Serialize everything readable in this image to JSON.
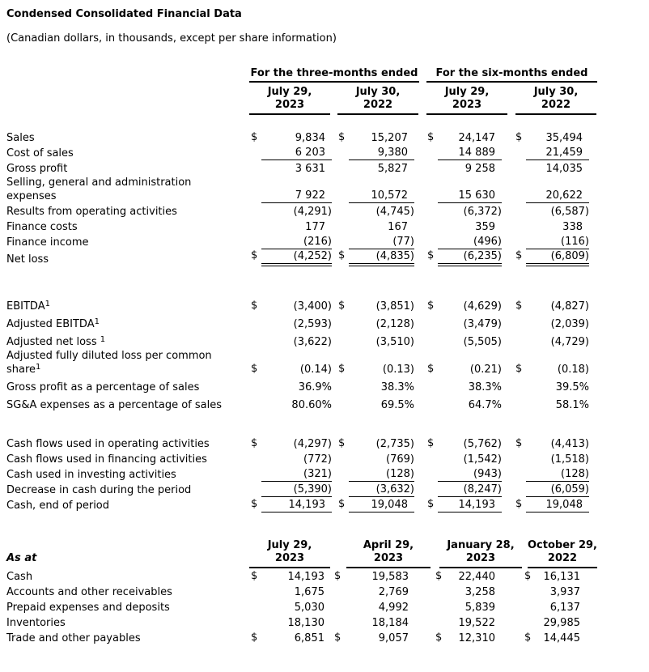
{
  "title": "Condensed Consolidated Financial Data",
  "subtitle": "(Canadian dollars, in thousands, except per share information)",
  "periods_table": {
    "group_headers": [
      "For the three-months ended",
      "For the six-months ended"
    ],
    "column_headers": [
      "July 29,\n2023",
      "July 30,\n2022",
      "July 29,\n2023",
      "July 30,\n2022"
    ],
    "sections": [
      {
        "name": "operations",
        "rows": [
          {
            "label": "Sales",
            "dollar": true,
            "values": [
              "9,834",
              "15,207",
              "24,147",
              "35,494"
            ]
          },
          {
            "label": "Cost of sales",
            "values": [
              "6 203",
              "9,380",
              "14 889",
              "21,459"
            ],
            "underline": "single"
          },
          {
            "label": "Gross profit",
            "values": [
              "3 631",
              "5,827",
              "9 258",
              "14,035"
            ]
          },
          {
            "label": "Selling, general and administration\nexpenses",
            "values": [
              "7 922",
              "10,572",
              "15 630",
              "20,622"
            ],
            "underline": "single"
          },
          {
            "label": "Results from operating activities",
            "values": [
              "(4,291)",
              "(4,745)",
              "(6,372)",
              "(6,587)"
            ]
          },
          {
            "label": "Finance costs",
            "values": [
              "177",
              "167",
              "359",
              "338"
            ]
          },
          {
            "label": "Finance income",
            "values": [
              "(216)",
              "(77)",
              "(496)",
              "(116)"
            ],
            "underline": "single"
          },
          {
            "label": "Net loss",
            "dollar": true,
            "values": [
              "(4,252)",
              "(4,835)",
              "(6,235)",
              "(6,809)"
            ],
            "underline": "double"
          }
        ]
      },
      {
        "name": "non-gaap-measures",
        "rows": [
          {
            "label": "EBITDA",
            "sup": "1",
            "dollar": true,
            "values": [
              "(3,400)",
              "(3,851)",
              "(4,629)",
              "(4,827)"
            ]
          },
          {
            "label": "Adjusted EBITDA",
            "sup": "1",
            "values": [
              "(2,593)",
              "(2,128)",
              "(3,479)",
              "(2,039)"
            ]
          },
          {
            "label": "Adjusted net loss ",
            "sup": "1",
            "values": [
              "(3,622)",
              "(3,510)",
              "(5,505)",
              "(4,729)"
            ]
          },
          {
            "label": "Adjusted fully diluted loss per common\nshare",
            "sup": "1",
            "dollar": true,
            "values": [
              "(0.14)",
              "(0.13)",
              "(0.21)",
              "(0.18)"
            ]
          },
          {
            "label": "Gross profit as a percentage of sales",
            "values": [
              "36.9%",
              "38.3%",
              "38.3%",
              "39.5%"
            ]
          },
          {
            "label": "SG&A expenses as a percentage of sales",
            "values": [
              "80.60%",
              "69.5%",
              "64.7%",
              "58.1%"
            ]
          }
        ]
      },
      {
        "name": "cash-flows",
        "rows": [
          {
            "label": "Cash flows used in operating activities",
            "dollar": true,
            "values": [
              "(4,297)",
              "(2,735)",
              "(5,762)",
              "(4,413)"
            ]
          },
          {
            "label": "Cash flows used in financing activities",
            "values": [
              "(772)",
              "(769)",
              "(1,542)",
              "(1,518)"
            ]
          },
          {
            "label": "Cash used in investing activities",
            "values": [
              "(321)",
              "(128)",
              "(943)",
              "(128)"
            ],
            "underline": "single"
          },
          {
            "label": "Decrease in cash during the period",
            "values": [
              "(5,390)",
              "(3,632)",
              "(8,247)",
              "(6,059)"
            ],
            "underline": "single"
          },
          {
            "label": "Cash, end of period",
            "dollar": true,
            "values": [
              "14,193",
              "19,048",
              "14,193",
              "19,048"
            ],
            "underline": "single"
          }
        ]
      }
    ]
  },
  "as_at_table": {
    "label_header": "As at",
    "column_headers": [
      "July 29,\n2023",
      "April 29,\n2023",
      "January 28,\n2023",
      "October 29,\n2022"
    ],
    "rows": [
      {
        "label": "Cash",
        "dollar": true,
        "values": [
          "14,193",
          "19,583",
          "22,440",
          "16,131"
        ]
      },
      {
        "label": "Accounts and other receivables",
        "values": [
          "1,675",
          "2,769",
          "3,258",
          "3,937"
        ]
      },
      {
        "label": "Prepaid expenses and deposits",
        "values": [
          "5,030",
          "4,992",
          "5,839",
          "6,137"
        ]
      },
      {
        "label": "Inventories",
        "values": [
          "18,130",
          "18,184",
          "19,522",
          "29,985"
        ]
      },
      {
        "label": "Trade and other payables",
        "dollar": true,
        "values": [
          "6,851",
          "9,057",
          "12,310",
          "14,445"
        ]
      }
    ]
  }
}
